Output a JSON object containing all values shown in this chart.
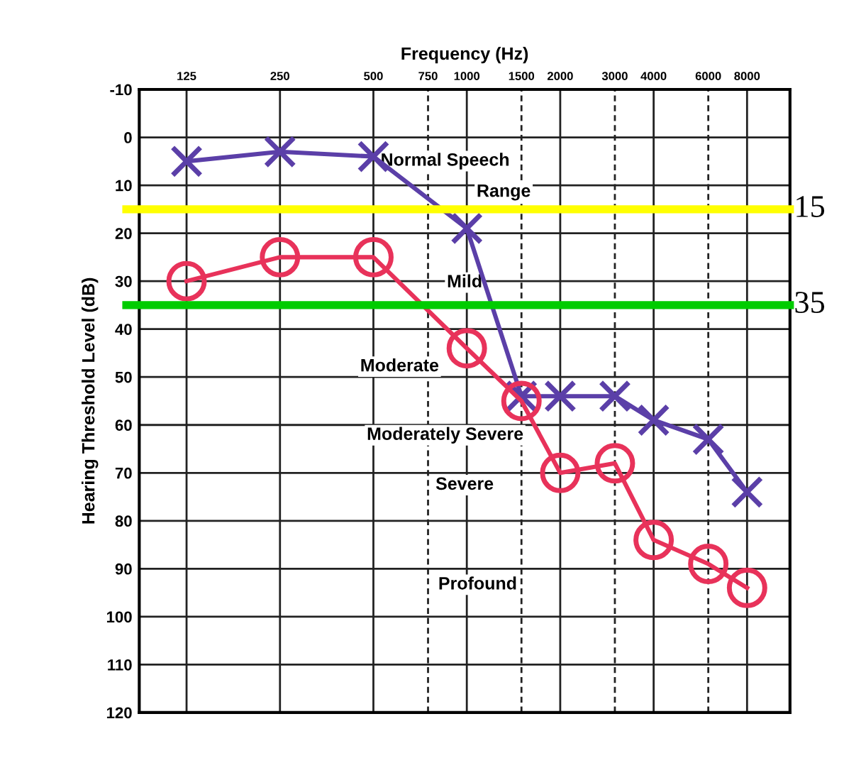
{
  "chart_data": {
    "type": "line",
    "xlabel": "Frequency (Hz)",
    "ylabel": "Hearing Threshold Level (dB)",
    "x": [
      125,
      250,
      500,
      1000,
      1500,
      2000,
      3000,
      4000,
      6000,
      8000
    ],
    "series": [
      {
        "color": "#5b3fa8",
        "marker": "cross",
        "values": [
          5,
          3,
          4,
          19,
          54,
          54,
          54,
          59,
          63,
          74
        ]
      },
      {
        "color": "#e8325a",
        "marker": "circle",
        "values": [
          30,
          25,
          25,
          44,
          55,
          70,
          68,
          84,
          89,
          94
        ]
      }
    ],
    "log": "x",
    "xlim": [
      88,
      11000
    ],
    "xticks": [
      125,
      250,
      500,
      750,
      1000,
      1500,
      2000,
      3000,
      4000,
      6000,
      8000
    ],
    "ylim": [
      120,
      -10
    ],
    "yticks": [
      -10,
      0,
      10,
      20,
      30,
      40,
      50,
      60,
      70,
      80,
      90,
      100,
      110,
      120
    ],
    "grid": true,
    "ref_lines": [
      {
        "axis": "y",
        "value": 15,
        "label": "15",
        "color": "#ffff00"
      },
      {
        "axis": "y",
        "value": 35,
        "label": "35",
        "color": "#00cc00"
      }
    ],
    "annotations": [
      "Normal Speech",
      "Range",
      "Mild",
      "Moderate",
      "Moderately Severe",
      "Severe",
      "Profound"
    ]
  }
}
